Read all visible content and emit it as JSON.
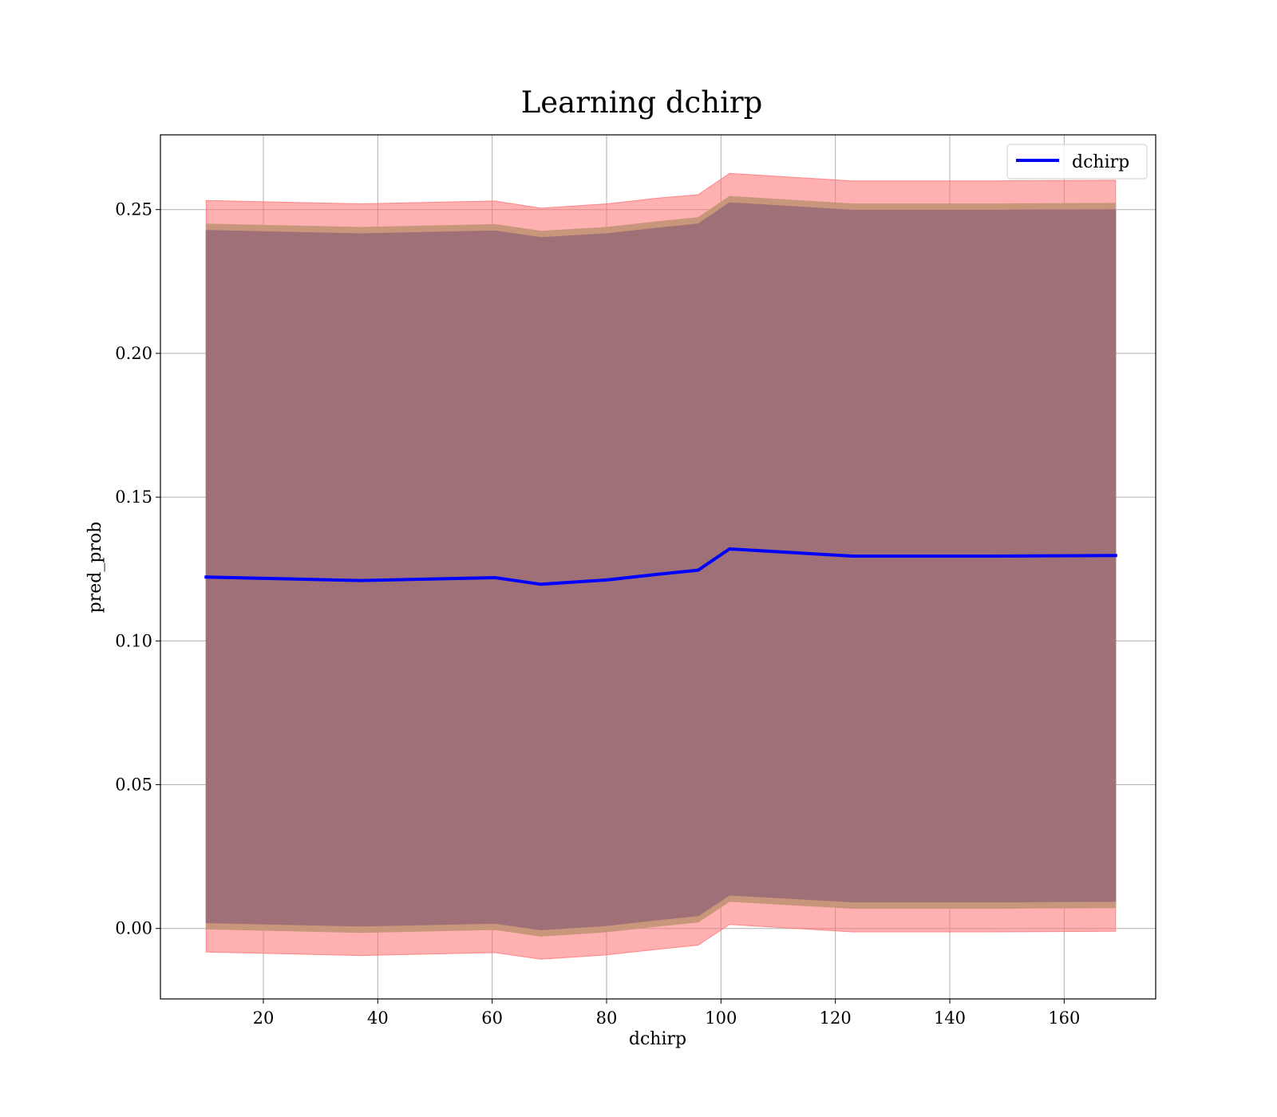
{
  "chart_data": {
    "type": "line",
    "title": "Learning dchirp",
    "xlabel": "dchirp",
    "ylabel": "pred_prob",
    "xlim": [
      2.0,
      176.0
    ],
    "ylim": [
      -0.0245,
      0.276
    ],
    "xticks": [
      20,
      40,
      60,
      80,
      100,
      120,
      140,
      160
    ],
    "xtick_labels": [
      "20",
      "40",
      "60",
      "80",
      "100",
      "120",
      "140",
      "160"
    ],
    "yticks": [
      0.0,
      0.05,
      0.1,
      0.15,
      0.2,
      0.25
    ],
    "ytick_labels": [
      "0.00",
      "0.05",
      "0.10",
      "0.15",
      "0.20",
      "0.25"
    ],
    "grid": true,
    "legend_position": "top-right",
    "series": [
      {
        "name": "dchirp",
        "color": "#0000ff",
        "x": [
          10,
          37,
          60.5,
          68.5,
          80,
          89,
          96,
          101.5,
          123,
          147,
          169
        ],
        "y": [
          0.1222,
          0.121,
          0.122,
          0.1197,
          0.1212,
          0.1232,
          0.1246,
          0.132,
          0.1295,
          0.1295,
          0.1297
        ]
      }
    ],
    "bands": [
      {
        "description": "outer band",
        "color": "#ff6f6f",
        "opacity": 0.55,
        "x": [
          10,
          37,
          60.5,
          68.5,
          80,
          89,
          96,
          101.5,
          123,
          147,
          169
        ],
        "upper": [
          0.2532,
          0.252,
          0.253,
          0.2505,
          0.252,
          0.254,
          0.2552,
          0.2626,
          0.26,
          0.26,
          0.2602
        ],
        "lower": [
          -0.0082,
          -0.0094,
          -0.0084,
          -0.0107,
          -0.0092,
          -0.0072,
          -0.0058,
          0.0014,
          -0.0012,
          -0.0012,
          -0.001
        ]
      },
      {
        "description": "middle band",
        "color": "#c8967a",
        "opacity": 1,
        "x": [
          10,
          37,
          60.5,
          68.5,
          80,
          89,
          96,
          101.5,
          123,
          147,
          169
        ],
        "upper": [
          0.245,
          0.2438,
          0.2448,
          0.2425,
          0.2438,
          0.2458,
          0.2472,
          0.2546,
          0.252,
          0.252,
          0.2522
        ],
        "lower": [
          -0.0002,
          -0.0014,
          -0.0004,
          -0.0027,
          -0.0012,
          0.0008,
          0.0022,
          0.0094,
          0.007,
          0.007,
          0.0072
        ]
      },
      {
        "description": "inner band",
        "color": "#a07079",
        "opacity": 1,
        "x": [
          10,
          37,
          60.5,
          68.5,
          80,
          89,
          96,
          101.5,
          123,
          147,
          169
        ],
        "upper": [
          0.2428,
          0.2416,
          0.2426,
          0.2403,
          0.2416,
          0.2436,
          0.245,
          0.2524,
          0.2498,
          0.2498,
          0.25
        ],
        "lower": [
          0.002,
          0.0008,
          0.0018,
          -0.0005,
          0.001,
          0.003,
          0.0044,
          0.0116,
          0.0092,
          0.0092,
          0.0094
        ]
      }
    ]
  }
}
